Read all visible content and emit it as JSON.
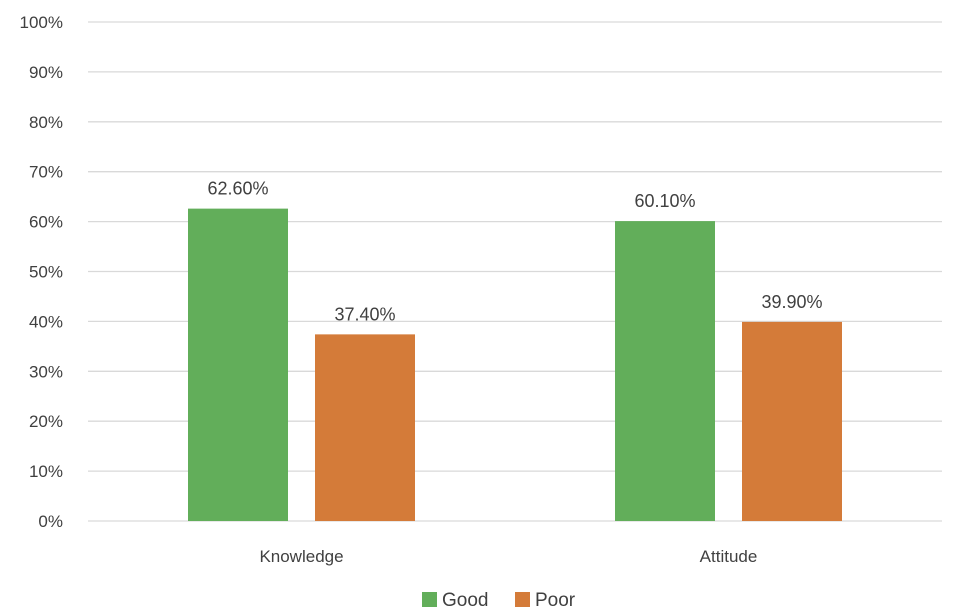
{
  "chart_data": {
    "type": "bar",
    "categories": [
      "Knowledge",
      "Attitude"
    ],
    "series": [
      {
        "name": "Good",
        "values": [
          62.6,
          60.1
        ],
        "labels": [
          "62.60%",
          "60.10%"
        ],
        "color": "#62ae5a"
      },
      {
        "name": "Poor",
        "values": [
          37.4,
          39.9
        ],
        "labels": [
          "37.40%",
          "39.90%"
        ],
        "color": "#d47b39"
      }
    ],
    "ylim": [
      0,
      100
    ],
    "yticks": [
      "0%",
      "10%",
      "20%",
      "30%",
      "40%",
      "50%",
      "60%",
      "70%",
      "80%",
      "90%",
      "100%"
    ],
    "ytick_values": [
      0,
      10,
      20,
      30,
      40,
      50,
      60,
      70,
      80,
      90,
      100
    ],
    "grid": true,
    "legend_position": "bottom",
    "gridline_color": "#d9d9d9",
    "text_color": "#404040"
  }
}
